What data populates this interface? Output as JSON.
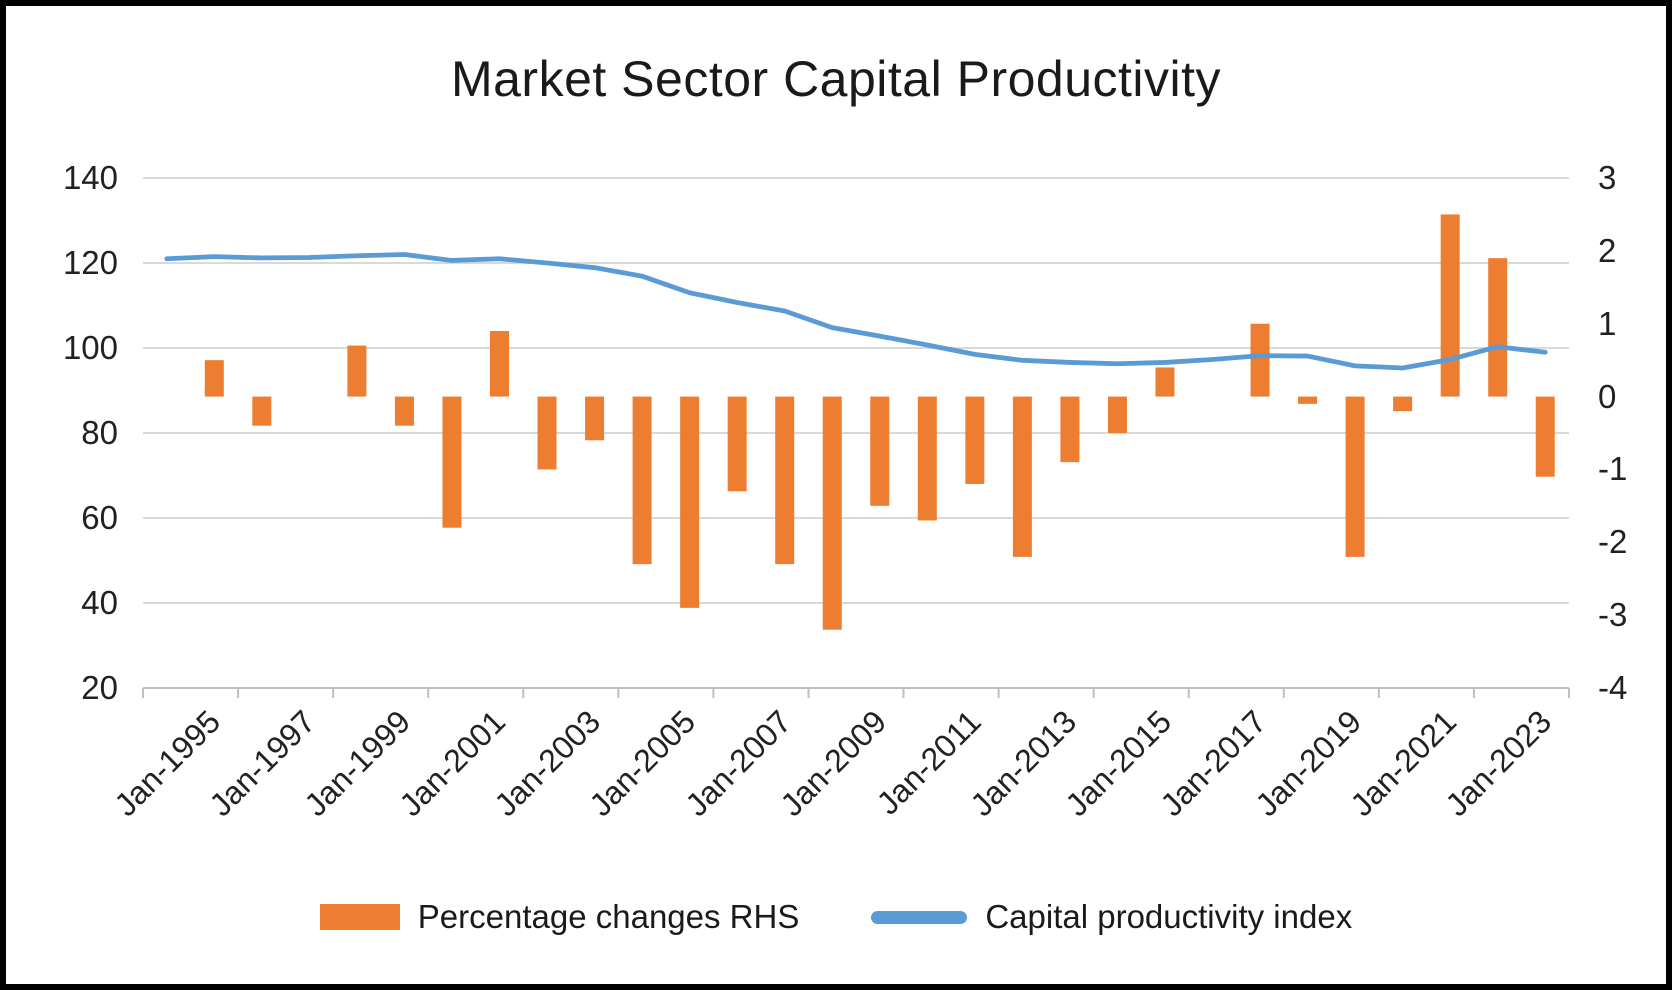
{
  "title": "Market Sector Capital Productivity",
  "legend": {
    "bar_label": "Percentage changes RHS",
    "line_label": "Capital productivity index"
  },
  "colors": {
    "bar": "#ED7D31",
    "line": "#5B9BD5",
    "gridline": "#D9D9D9",
    "axis": "#BFBFBF",
    "text": "#212121"
  },
  "chart_data": {
    "type": "bar+line combo, dual axis",
    "title": "Market Sector Capital Productivity",
    "categories": [
      1995,
      1996,
      1997,
      1998,
      1999,
      2000,
      2001,
      2002,
      2003,
      2004,
      2005,
      2006,
      2007,
      2008,
      2009,
      2010,
      2011,
      2012,
      2013,
      2014,
      2015,
      2016,
      2017,
      2018,
      2019,
      2020,
      2021,
      2022,
      2023,
      2024
    ],
    "x_tick_labels": [
      "Jan-1995",
      "Jan-1997",
      "Jan-1999",
      "Jan-2001",
      "Jan-2003",
      "Jan-2005",
      "Jan-2007",
      "Jan-2009",
      "Jan-2011",
      "Jan-2013",
      "Jan-2015",
      "Jan-2017",
      "Jan-2019",
      "Jan-2021",
      "Jan-2023"
    ],
    "left_axis": {
      "ticks": [
        140,
        120,
        100,
        80,
        60,
        40,
        20
      ],
      "ylim": [
        20,
        140
      ],
      "series": "Capital productivity index"
    },
    "right_axis": {
      "ticks": [
        3,
        2,
        1,
        0,
        -1,
        -2,
        -3,
        -4
      ],
      "ylim": [
        -4,
        3
      ],
      "series": "Percentage changes RHS"
    },
    "grid": "horizontal major gridlines, left axis majors",
    "legend_position": "bottom",
    "series": [
      {
        "name": "Percentage changes RHS",
        "type": "bar",
        "axis": "right",
        "values": [
          null,
          0.5,
          -0.4,
          0,
          0.7,
          -0.4,
          -1.8,
          0.9,
          -1.0,
          -0.6,
          -2.3,
          -2.9,
          -1.3,
          -2.3,
          -3.2,
          -1.5,
          -1.7,
          -1.2,
          -2.2,
          -0.9,
          -0.5,
          0.4,
          0,
          1.0,
          -0.1,
          -2.2,
          -0.2,
          2.5,
          1.9,
          -1.1
        ]
      },
      {
        "name": "Capital productivity index",
        "type": "line",
        "axis": "left",
        "values": [
          121.0,
          121.5,
          121.2,
          121.3,
          121.7,
          122.0,
          120.6,
          121.0,
          120.0,
          118.9,
          116.9,
          113.0,
          110.7,
          108.7,
          104.8,
          102.8,
          100.7,
          98.5,
          97.1,
          96.6,
          96.3,
          96.6,
          97.3,
          98.2,
          98.1,
          95.8,
          95.3,
          97.3,
          100.3,
          99.0
        ]
      }
    ]
  }
}
